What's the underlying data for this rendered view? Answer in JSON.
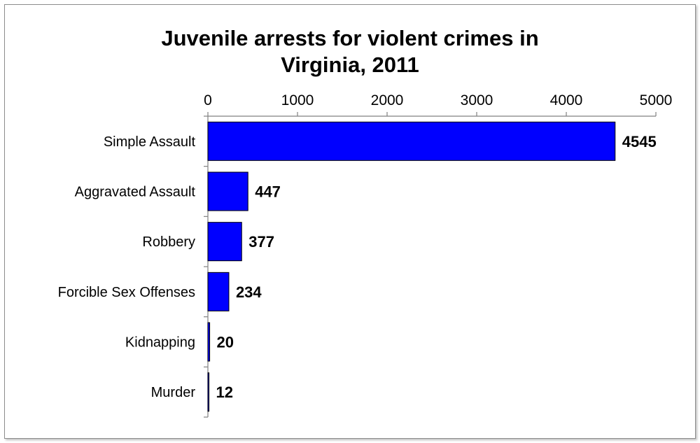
{
  "chart_data": {
    "type": "bar",
    "orientation": "horizontal",
    "title_line1": "Juvenile arrests for violent crimes in",
    "title_line2": "Virginia, 2011",
    "categories": [
      "Simple Assault",
      "Aggravated Assault",
      "Robbery",
      "Forcible Sex Offenses",
      "Kidnapping",
      "Murder"
    ],
    "values": [
      4545,
      447,
      377,
      234,
      20,
      12
    ],
    "xlim": [
      0,
      5000
    ],
    "ticks": [
      "0",
      "1000",
      "2000",
      "3000",
      "4000",
      "5000"
    ],
    "axis_position": "top",
    "grid": false,
    "legend": "none",
    "bar_color": "#0000ff",
    "data_labels": true
  }
}
